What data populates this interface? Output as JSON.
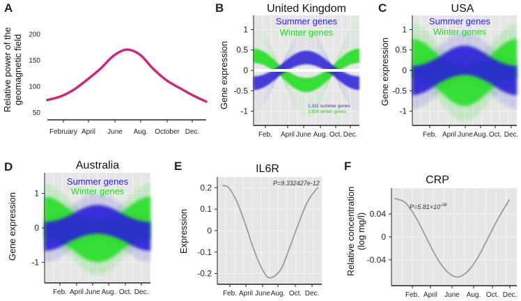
{
  "chart_data": [
    {
      "id": "A",
      "panel_label": "A",
      "type": "line",
      "title": "",
      "xlabel": "",
      "ylabel": "Relative power of the\ngeomagnetic field",
      "x_ticks": [
        "February",
        "April",
        "June",
        "Aug.",
        "October",
        "Dec."
      ],
      "y_ticks": [
        "50",
        "100",
        "150",
        "200"
      ],
      "ylim": [
        35,
        225
      ],
      "series": [
        {
          "name": "geomagnetic",
          "color": "#cc2a78",
          "x": [
            0,
            1,
            2,
            3,
            4,
            5,
            6,
            7,
            8,
            9,
            10,
            11,
            12
          ],
          "y": [
            73,
            80,
            93,
            112,
            133,
            158,
            170,
            160,
            133,
            111,
            96,
            82,
            70
          ]
        }
      ]
    },
    {
      "id": "B",
      "panel_label": "B",
      "type": "line",
      "title": "United Kingdom",
      "ylabel": "Gene expression",
      "x_ticks": [
        "Feb.",
        "April",
        "June",
        "Aug.",
        "Oct.",
        "Dec."
      ],
      "y_ticks": [
        "1",
        "0.5",
        "0",
        "-0.5",
        "-1"
      ],
      "ylim": [
        -1.35,
        1.35
      ],
      "legend": [
        "Summer genes",
        "Winter genes"
      ],
      "annotations": [
        "2,311 summer genes",
        "2,826 winter genes"
      ],
      "series": [
        {
          "name": "Summer genes",
          "color": "#2a1fd6",
          "amplitude": -0.7
        },
        {
          "name": "Winter genes",
          "color": "#22dd22",
          "amplitude": 0.8
        }
      ]
    },
    {
      "id": "C",
      "panel_label": "C",
      "type": "line",
      "title": "USA",
      "ylabel": "Gene expression",
      "x_ticks": [
        "Feb.",
        "April",
        "June",
        "Aug.",
        "Oct.",
        "Dec."
      ],
      "y_ticks": [
        "1",
        "0.5",
        "0",
        "-0.5",
        "-1"
      ],
      "ylim": [
        -1.35,
        1.35
      ],
      "legend": [
        "Summer genes",
        "Winter genes"
      ],
      "series": [
        {
          "name": "Summer genes",
          "color": "#2a1fd6",
          "amplitude": -0.25
        },
        {
          "name": "Winter genes",
          "color": "#22dd22",
          "amplitude": 0.35
        }
      ]
    },
    {
      "id": "D",
      "panel_label": "D",
      "type": "line",
      "title": "Australia",
      "ylabel": "Gene expression",
      "x_ticks": [
        "Feb.",
        "April",
        "June",
        "Aug.",
        "Oct.",
        "Dec."
      ],
      "y_ticks": [
        "1",
        "0",
        "-1"
      ],
      "ylim": [
        -1.6,
        1.6
      ],
      "legend": [
        "Summer genes",
        "Winter genes"
      ],
      "series": [
        {
          "name": "Summer genes",
          "color": "#2a1fd6",
          "amplitude": -0.25
        },
        {
          "name": "Winter genes",
          "color": "#22dd22",
          "amplitude": 0.35
        }
      ]
    },
    {
      "id": "E",
      "panel_label": "E",
      "type": "line",
      "title": "IL6R",
      "ylabel": "Expression",
      "x_ticks": [
        "Feb.",
        "April",
        "June",
        "Aug.",
        "Oct.",
        "Dec."
      ],
      "y_ticks": [
        "0.2",
        "0.1",
        "0",
        "-0.1",
        "-0.2"
      ],
      "ylim": [
        -0.25,
        0.25
      ],
      "pvalue": "P=9.332427e-12",
      "series": [
        {
          "name": "IL6R",
          "color": "#9a9a9a",
          "x": [
            0.3,
            1,
            2,
            3,
            4,
            5,
            5.8,
            7,
            8,
            9,
            10,
            11,
            11.3
          ],
          "y": [
            0.21,
            0.2,
            0.13,
            0.02,
            -0.1,
            -0.19,
            -0.22,
            -0.18,
            -0.08,
            0.03,
            0.13,
            0.19,
            0.2
          ]
        }
      ]
    },
    {
      "id": "F",
      "panel_label": "F",
      "type": "line",
      "title": "CRP",
      "ylabel": "Relative concentration\n(log mg/l)",
      "x_ticks": [
        "Feb.",
        "April",
        "June",
        "Aug.",
        "Oct.",
        "Dec."
      ],
      "y_ticks": [
        "0.04",
        "0",
        "-0.04"
      ],
      "ylim": [
        -0.085,
        0.085
      ],
      "pvalue": "P=5.81×10",
      "pvalue_exponent": "-08",
      "series": [
        {
          "name": "CRP",
          "color": "#9a9a9a",
          "x": [
            0,
            1,
            2,
            3,
            4,
            5,
            6,
            7,
            8,
            9,
            10,
            11
          ],
          "y": [
            0.067,
            0.06,
            0.035,
            0.0,
            -0.035,
            -0.06,
            -0.07,
            -0.06,
            -0.035,
            0.0,
            0.035,
            0.065
          ]
        }
      ]
    }
  ]
}
